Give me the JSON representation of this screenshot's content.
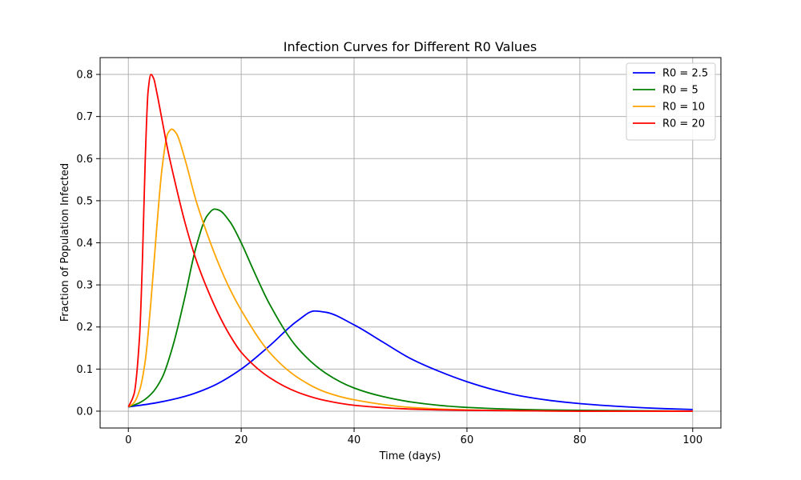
{
  "chart_data": {
    "type": "line",
    "title": "Infection Curves for Different R0 Values",
    "xlabel": "Time (days)",
    "ylabel": "Fraction of Population Infected",
    "xlim": [
      -5,
      105
    ],
    "ylim": [
      -0.04,
      0.84
    ],
    "x_ticks": [
      0,
      20,
      40,
      60,
      80,
      100
    ],
    "x_tick_labels": [
      "0",
      "20",
      "40",
      "60",
      "80",
      "100"
    ],
    "y_ticks": [
      0.0,
      0.1,
      0.2,
      0.3,
      0.4,
      0.5,
      0.6,
      0.7,
      0.8
    ],
    "y_tick_labels": [
      "0.0",
      "0.1",
      "0.2",
      "0.3",
      "0.4",
      "0.5",
      "0.6",
      "0.7",
      "0.8"
    ],
    "grid": true,
    "legend_position": "top-right",
    "series": [
      {
        "name": "R0 = 2.5",
        "color": "#0000ff",
        "x": [
          0,
          5,
          10,
          15,
          20,
          25,
          30,
          33,
          35,
          40,
          45,
          50,
          55,
          60,
          65,
          70,
          75,
          80,
          85,
          90,
          95,
          100
        ],
        "values": [
          0.01,
          0.02,
          0.035,
          0.06,
          0.1,
          0.155,
          0.215,
          0.238,
          0.235,
          0.205,
          0.165,
          0.125,
          0.095,
          0.07,
          0.05,
          0.035,
          0.025,
          0.018,
          0.013,
          0.009,
          0.006,
          0.004
        ]
      },
      {
        "name": "R0 = 5",
        "color": "#008000",
        "x": [
          0,
          2,
          4,
          6,
          8,
          10,
          12,
          14,
          15.3,
          16,
          18,
          20,
          22,
          25,
          30,
          35,
          40,
          45,
          50,
          55,
          60,
          70,
          80,
          90,
          100
        ],
        "values": [
          0.01,
          0.02,
          0.04,
          0.08,
          0.16,
          0.27,
          0.39,
          0.465,
          0.48,
          0.478,
          0.45,
          0.4,
          0.34,
          0.255,
          0.15,
          0.09,
          0.055,
          0.035,
          0.022,
          0.014,
          0.009,
          0.004,
          0.002,
          0.001,
          0.0
        ]
      },
      {
        "name": "R0 = 10",
        "color": "#ffa500",
        "x": [
          0,
          1,
          2,
          3,
          4,
          5,
          6,
          7,
          7.7,
          8.5,
          10,
          12,
          14,
          16,
          18,
          20,
          25,
          30,
          35,
          40,
          50,
          60,
          70,
          80,
          100
        ],
        "values": [
          0.01,
          0.02,
          0.05,
          0.12,
          0.26,
          0.43,
          0.58,
          0.66,
          0.67,
          0.66,
          0.6,
          0.5,
          0.42,
          0.35,
          0.29,
          0.24,
          0.14,
          0.08,
          0.045,
          0.027,
          0.009,
          0.003,
          0.001,
          0.0,
          0.0
        ]
      },
      {
        "name": "R0 = 20",
        "color": "#ff0000",
        "x": [
          0,
          1,
          2,
          2.5,
          3,
          3.5,
          4,
          4.5,
          5,
          6,
          7,
          8,
          10,
          12,
          14,
          16,
          18,
          20,
          25,
          30,
          35,
          40,
          50,
          60,
          70,
          80,
          100
        ],
        "values": [
          0.01,
          0.04,
          0.18,
          0.36,
          0.6,
          0.76,
          0.8,
          0.79,
          0.76,
          0.69,
          0.62,
          0.56,
          0.45,
          0.36,
          0.29,
          0.23,
          0.18,
          0.14,
          0.08,
          0.045,
          0.025,
          0.014,
          0.005,
          0.002,
          0.001,
          0.0,
          0.0
        ]
      }
    ]
  }
}
